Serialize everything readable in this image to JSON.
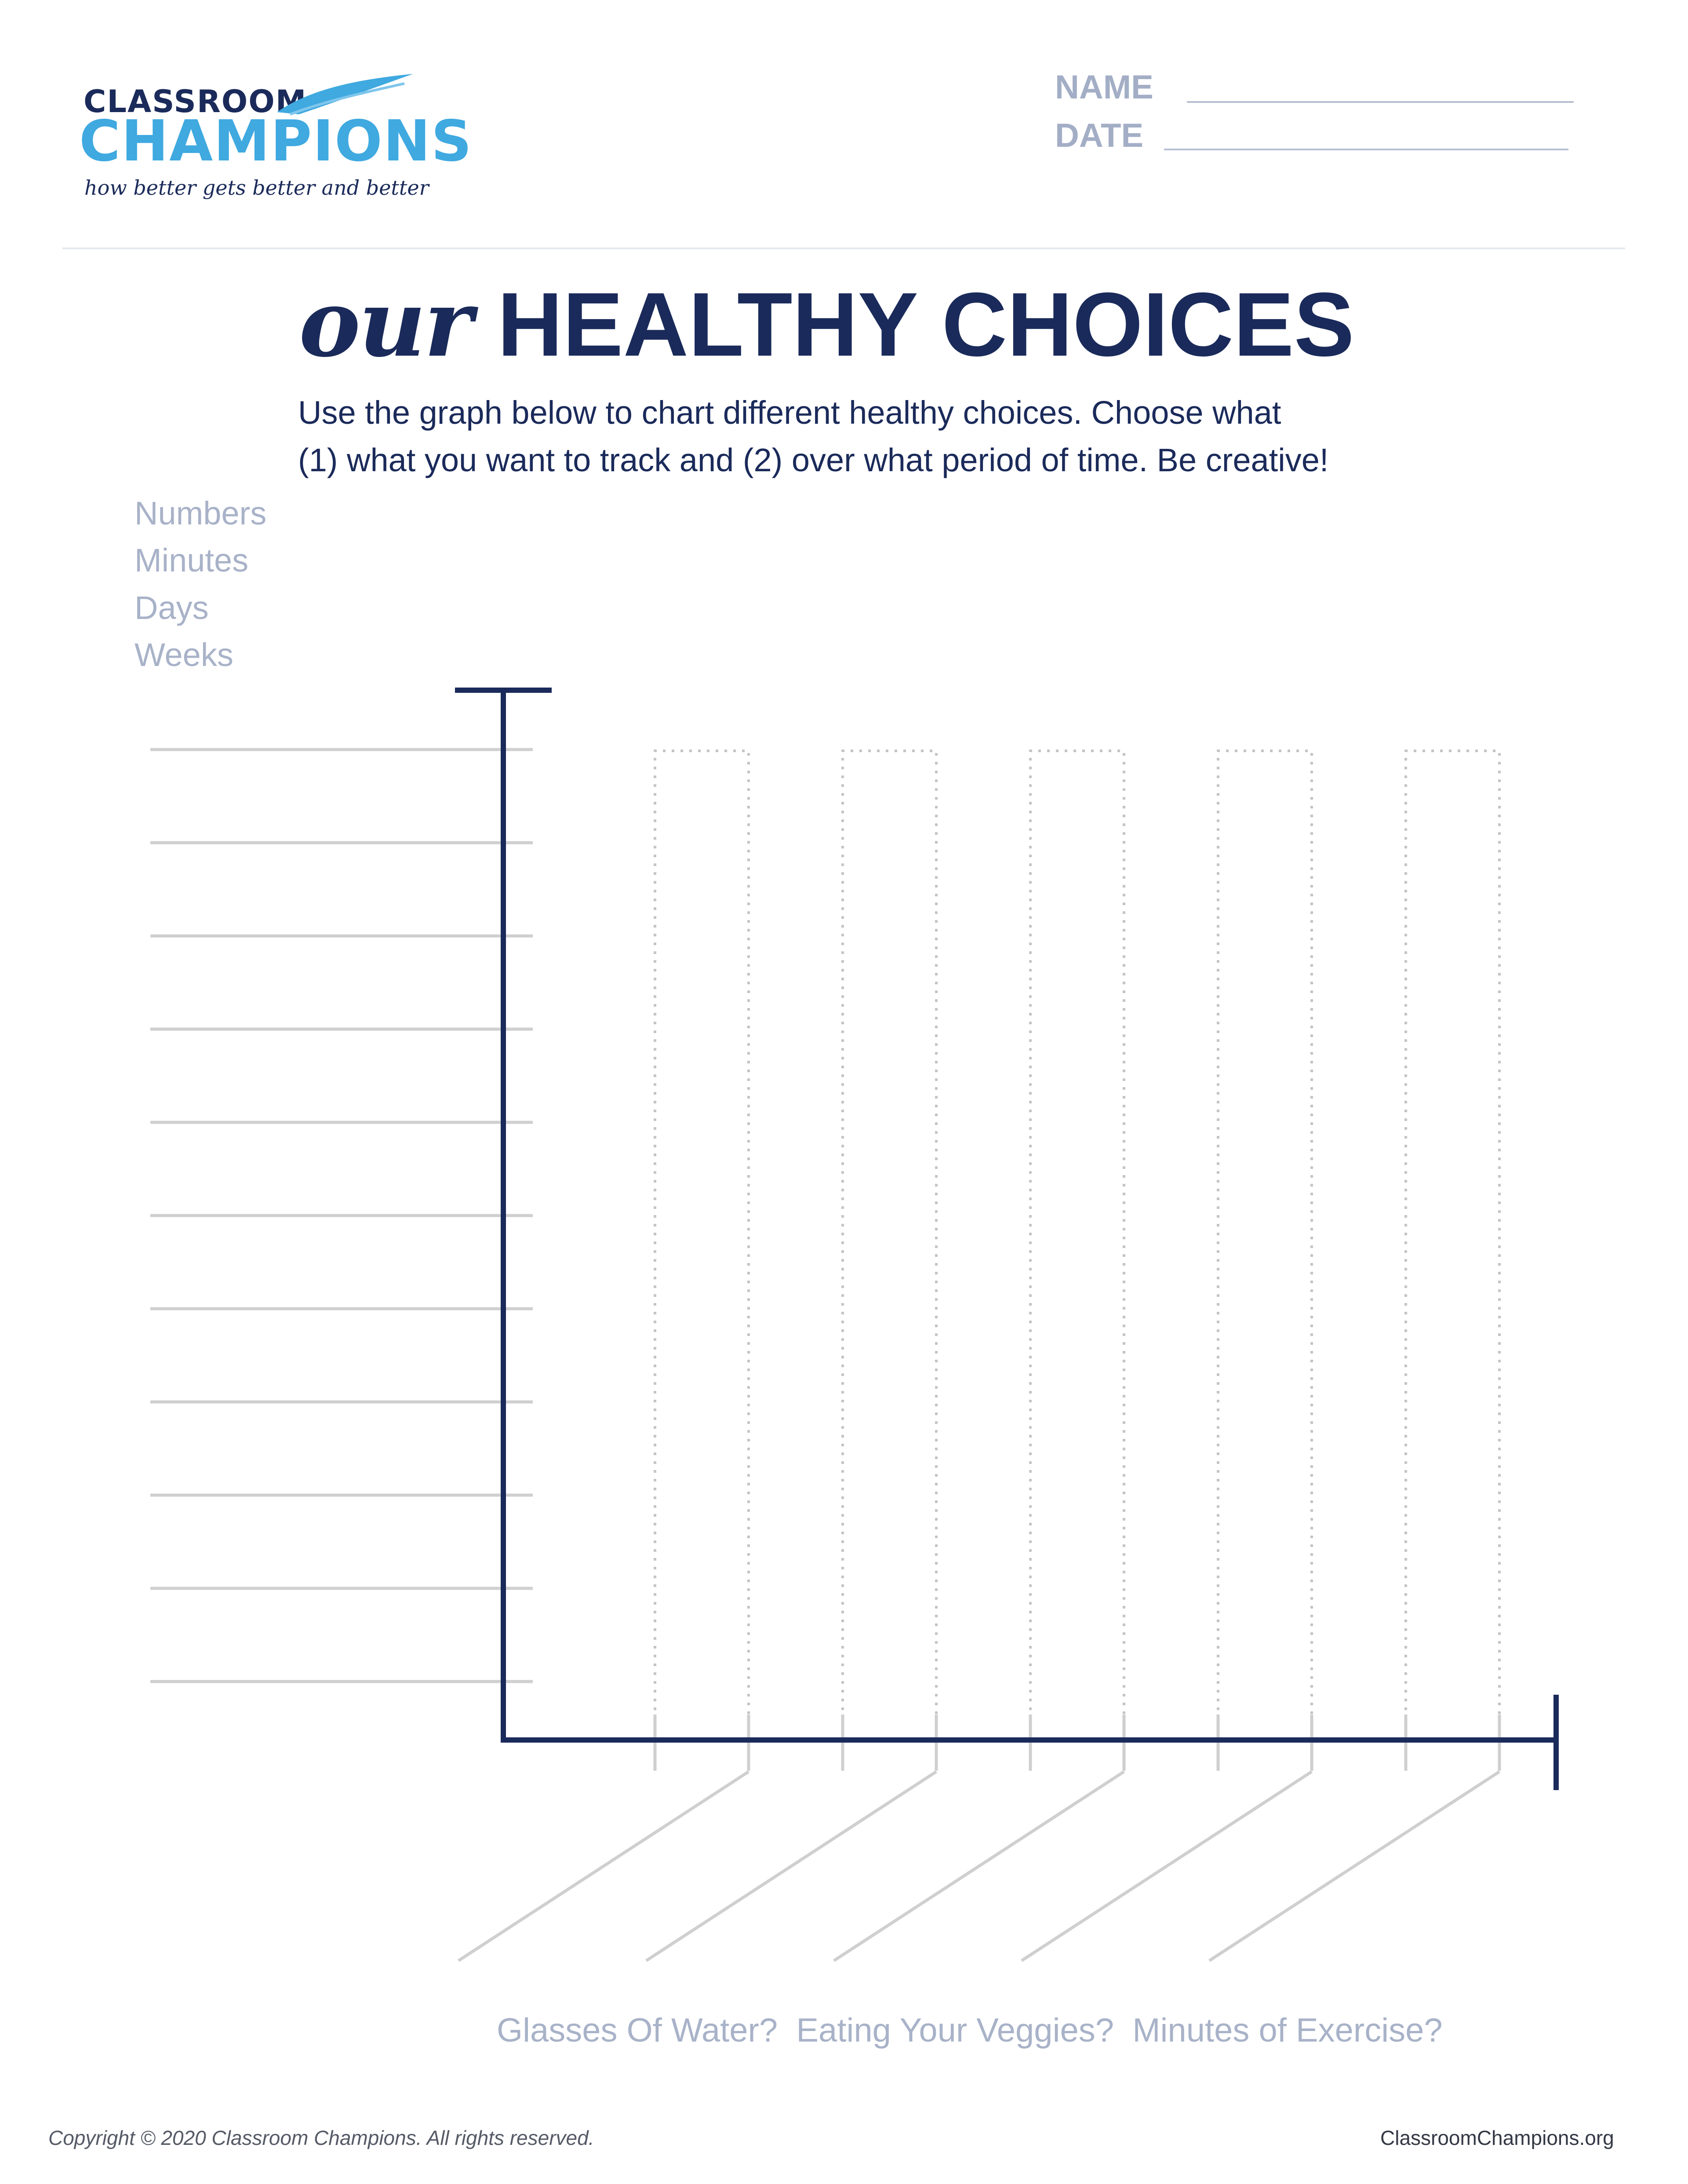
{
  "logo": {
    "line1": "CLASSROOM",
    "line2": "CHAMPIONS",
    "tagline": "how better gets better and better"
  },
  "header": {
    "name_label": "NAME",
    "date_label": "DATE"
  },
  "title": {
    "emphasis": "our",
    "main": "HEALTHY CHOICES"
  },
  "instructions": {
    "line1": "Use the graph below to chart different healthy choices. Choose what",
    "line2": "(1) what you want to track and (2) over what period of time. Be creative!"
  },
  "units": [
    "Numbers",
    "Minutes",
    "Days",
    "Weeks"
  ],
  "examples": "Glasses Of Water?  Eating Your Veggies?  Minutes of Exercise?",
  "footer": {
    "copyright": "Copyright © 2020 Classroom Champions. All rights reserved.",
    "website": "ClassroomChampions.org"
  },
  "colors": {
    "navy": "#1a2a5a",
    "brand_blue": "#3fa9e0",
    "muted": "#a8b2c8",
    "guide_line": "#cfcfcf"
  },
  "graph": {
    "blank_value_lines": 11,
    "blank_bar_columns": 5,
    "blank_category_labels": 5
  }
}
